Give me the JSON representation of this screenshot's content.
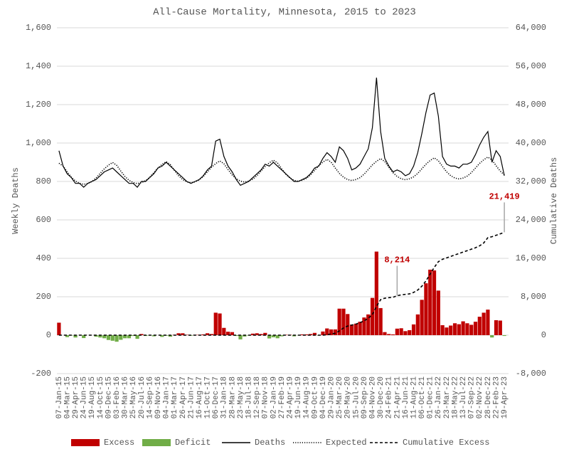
{
  "chart_data": {
    "type": "combo",
    "title": "All-Cause Mortality, Minnesota, 2015 to 2023",
    "y_label": "Weekly Deaths",
    "y2_label": "Cumulative Deaths",
    "grid": true,
    "legend": "bottom",
    "categories": [
      "07-Jan-15",
      null,
      "04-Mar-15",
      null,
      "29-Apr-15",
      null,
      "24-Jun-15",
      null,
      "19-Aug-15",
      null,
      "14-Oct-15",
      null,
      "09-Dec-15",
      null,
      "03-Feb-16",
      null,
      "30-Mar-16",
      null,
      "25-May-16",
      null,
      "20-Jul-16",
      null,
      "14-Sep-16",
      null,
      "09-Nov-16",
      null,
      "04-Jan-17",
      null,
      "01-Mar-17",
      null,
      "26-Apr-17",
      null,
      "21-Jun-17",
      null,
      "16-Aug-17",
      null,
      "11-Oct-17",
      null,
      "06-Dec-17",
      null,
      "31-Jan-18",
      null,
      "28-Mar-18",
      null,
      "23-May-18",
      null,
      "18-Jul-18",
      null,
      "12-Sep-18",
      null,
      "07-Nov-18",
      null,
      "02-Jan-19",
      null,
      "27-Feb-19",
      null,
      "24-Apr-19",
      null,
      "19-Jun-19",
      null,
      "14-Aug-19",
      null,
      "09-Oct-19",
      null,
      "04-Dec-19",
      null,
      "29-Jan-20",
      null,
      "25-Mar-20",
      null,
      "20-May-20",
      null,
      "15-Jul-20",
      null,
      "09-Sep-20",
      null,
      "04-Nov-20",
      null,
      "30-Dec-20",
      null,
      "24-Feb-21",
      null,
      "21-Apr-21",
      null,
      "16-Jun-21",
      null,
      "11-Aug-21",
      null,
      "06-Oct-21",
      null,
      "01-Dec-21",
      null,
      "26-Jan-22",
      null,
      "23-Mar-22",
      null,
      "18-May-22",
      null,
      "13-Jul-22",
      null,
      "07-Sep-22",
      null,
      "02-Nov-22",
      null,
      "28-Dec-22",
      null,
      "22-Feb-23",
      null,
      "19-Apr-23"
    ],
    "ylim": [
      -200,
      1600
    ],
    "yticks": [
      -200,
      0,
      200,
      400,
      600,
      800,
      {
        "value": 1000,
        "label": "1,000"
      },
      {
        "value": 1200,
        "label": "1,200"
      },
      {
        "value": 1400,
        "label": "1,400"
      },
      {
        "value": 1600,
        "label": "1,600"
      }
    ],
    "y2lim": [
      -8000,
      64000
    ],
    "y2ticks": [
      {
        "value": -8000,
        "label": "-8,000"
      },
      0,
      {
        "value": 8000,
        "label": "8,000"
      },
      {
        "value": 16000,
        "label": "16,000"
      },
      {
        "value": 24000,
        "label": "24,000"
      },
      {
        "value": 32000,
        "label": "32,000"
      },
      {
        "value": 40000,
        "label": "40,000"
      },
      {
        "value": 48000,
        "label": "48,000"
      },
      {
        "value": 56000,
        "label": "56,000"
      },
      {
        "value": 64000,
        "label": "64,000"
      }
    ],
    "series": [
      {
        "name": "Excess",
        "type": "bar",
        "color": "#c00000",
        "values": [
          65,
          0,
          null,
          null,
          null,
          0,
          null,
          0,
          0,
          null,
          null,
          null,
          null,
          null,
          null,
          null,
          null,
          null,
          null,
          null,
          6,
          null,
          null,
          null,
          0,
          null,
          null,
          null,
          2,
          10,
          10,
          2,
          null,
          2,
          2,
          4,
          10,
          6,
          117,
          113,
          38,
          18,
          16,
          null,
          null,
          null,
          null,
          8,
          10,
          6,
          12,
          null,
          null,
          null,
          null,
          2,
          2,
          null,
          null,
          4,
          4,
          6,
          12,
          null,
          19,
          35,
          30,
          30,
          138,
          138,
          110,
          55,
          60,
          70,
          92,
          108,
          194,
          435,
          141,
          16,
          6,
          4,
          34,
          36,
          21,
          26,
          56,
          108,
          184,
          270,
          341,
          337,
          232,
          52,
          40,
          50,
          62,
          57,
          72,
          62,
          54,
          70,
          96,
          117,
          133,
          null,
          78,
          76,
          null
        ]
      },
      {
        "name": "Deficit",
        "type": "bar",
        "color": "#70ad47",
        "values": [
          null,
          null,
          -10,
          -2,
          -12,
          null,
          -15,
          null,
          null,
          -8,
          -12,
          -16,
          -25,
          -29,
          -34,
          -24,
          -16,
          -16,
          -4,
          -19,
          null,
          -4,
          -2,
          -6,
          null,
          -9,
          -3,
          -8,
          null,
          null,
          null,
          null,
          -3,
          null,
          null,
          null,
          null,
          null,
          null,
          null,
          null,
          null,
          null,
          -4,
          -22,
          -7,
          -2,
          null,
          null,
          null,
          null,
          -17,
          -11,
          -16,
          -6,
          null,
          null,
          -6,
          -1,
          null,
          null,
          null,
          null,
          -2,
          null,
          null,
          null,
          null,
          null,
          null,
          null,
          null,
          null,
          null,
          null,
          null,
          null,
          null,
          null,
          null,
          null,
          null,
          null,
          null,
          null,
          null,
          null,
          null,
          null,
          null,
          null,
          null,
          null,
          null,
          null,
          null,
          null,
          null,
          null,
          null,
          null,
          null,
          null,
          null,
          null,
          -12,
          null,
          null,
          -4
        ]
      },
      {
        "name": "Deaths",
        "type": "line",
        "dash": "solid",
        "color": "#000000",
        "values": [
          960,
          880,
          840,
          820,
          790,
          790,
          770,
          790,
          800,
          810,
          830,
          850,
          860,
          870,
          850,
          830,
          810,
          790,
          790,
          770,
          800,
          800,
          820,
          840,
          870,
          880,
          900,
          880,
          860,
          840,
          820,
          800,
          790,
          800,
          810,
          830,
          860,
          880,
          1010,
          1020,
          930,
          880,
          850,
          810,
          780,
          790,
          800,
          820,
          840,
          860,
          890,
          880,
          900,
          880,
          860,
          840,
          820,
          800,
          800,
          810,
          820,
          840,
          870,
          880,
          920,
          950,
          930,
          900,
          980,
          960,
          920,
          860,
          870,
          890,
          930,
          970,
          1080,
          1340,
          1060,
          920,
          880,
          850,
          860,
          850,
          830,
          840,
          880,
          950,
          1050,
          1160,
          1250,
          1260,
          1140,
          930,
          890,
          880,
          880,
          870,
          890,
          890,
          900,
          940,
          990,
          1030,
          1060,
          900,
          960,
          930,
          830
        ]
      },
      {
        "name": "Expected",
        "type": "line",
        "dash": "dotted",
        "color": "#000000",
        "values": [
          895,
          880,
          850,
          822,
          802,
          790,
          785,
          790,
          800,
          818,
          842,
          866,
          885,
          899,
          884,
          854,
          826,
          806,
          794,
          789,
          794,
          804,
          822,
          846,
          870,
          889,
          903,
          888,
          858,
          830,
          810,
          798,
          793,
          798,
          808,
          826,
          850,
          874,
          893,
          907,
          892,
          862,
          834,
          814,
          802,
          797,
          802,
          812,
          830,
          854,
          878,
          897,
          911,
          896,
          866,
          838,
          818,
          806,
          801,
          806,
          816,
          834,
          858,
          882,
          901,
          915,
          900,
          870,
          842,
          822,
          810,
          805,
          810,
          820,
          838,
          862,
          886,
          905,
          919,
          904,
          874,
          846,
          826,
          814,
          809,
          814,
          824,
          842,
          866,
          890,
          909,
          923,
          908,
          878,
          850,
          830,
          818,
          813,
          818,
          828,
          846,
          870,
          894,
          913,
          927,
          912,
          882,
          854,
          834
        ]
      },
      {
        "name": "Cumulative Excess",
        "type": "line",
        "dash": "dashed",
        "color": "#000000",
        "axis": "y2",
        "label_color": "#c00000",
        "values": [
          0,
          0,
          0,
          0,
          0,
          0,
          0,
          0,
          0,
          0,
          0,
          0,
          0,
          0,
          0,
          0,
          0,
          0,
          0,
          0,
          0,
          0,
          0,
          0,
          0,
          0,
          0,
          0,
          0,
          0,
          0,
          0,
          0,
          0,
          0,
          0,
          0,
          0,
          0,
          0,
          0,
          0,
          0,
          0,
          0,
          0,
          0,
          0,
          0,
          0,
          0,
          0,
          0,
          0,
          0,
          0,
          0,
          0,
          0,
          0,
          0,
          0,
          0,
          0,
          0,
          100,
          250,
          400,
          900,
          1500,
          1900,
          2100,
          2300,
          2600,
          3000,
          3500,
          4300,
          6000,
          7400,
          7700,
          7800,
          7900,
          8214,
          8400,
          8500,
          8600,
          8900,
          9400,
          10200,
          11300,
          12700,
          14100,
          15300,
          15800,
          16100,
          16400,
          16700,
          17000,
          17300,
          17600,
          17900,
          18200,
          18600,
          19200,
          20300,
          20500,
          20800,
          21100,
          21419
        ],
        "value_labels": [
          null,
          null,
          null,
          null,
          null,
          null,
          null,
          null,
          null,
          null,
          null,
          null,
          null,
          null,
          null,
          null,
          null,
          null,
          null,
          null,
          null,
          null,
          null,
          null,
          null,
          null,
          null,
          null,
          null,
          null,
          null,
          null,
          null,
          null,
          null,
          null,
          null,
          null,
          null,
          null,
          null,
          null,
          null,
          null,
          null,
          null,
          null,
          null,
          null,
          null,
          null,
          null,
          null,
          null,
          null,
          null,
          null,
          null,
          null,
          null,
          null,
          null,
          null,
          null,
          null,
          null,
          null,
          null,
          null,
          null,
          null,
          null,
          null,
          null,
          null,
          null,
          null,
          null,
          null,
          null,
          null,
          null,
          "8,214",
          null,
          null,
          null,
          null,
          null,
          null,
          null,
          null,
          null,
          null,
          null,
          null,
          null,
          null,
          null,
          null,
          null,
          null,
          null,
          null,
          null,
          null,
          null,
          null,
          null,
          "21,419"
        ]
      }
    ]
  }
}
